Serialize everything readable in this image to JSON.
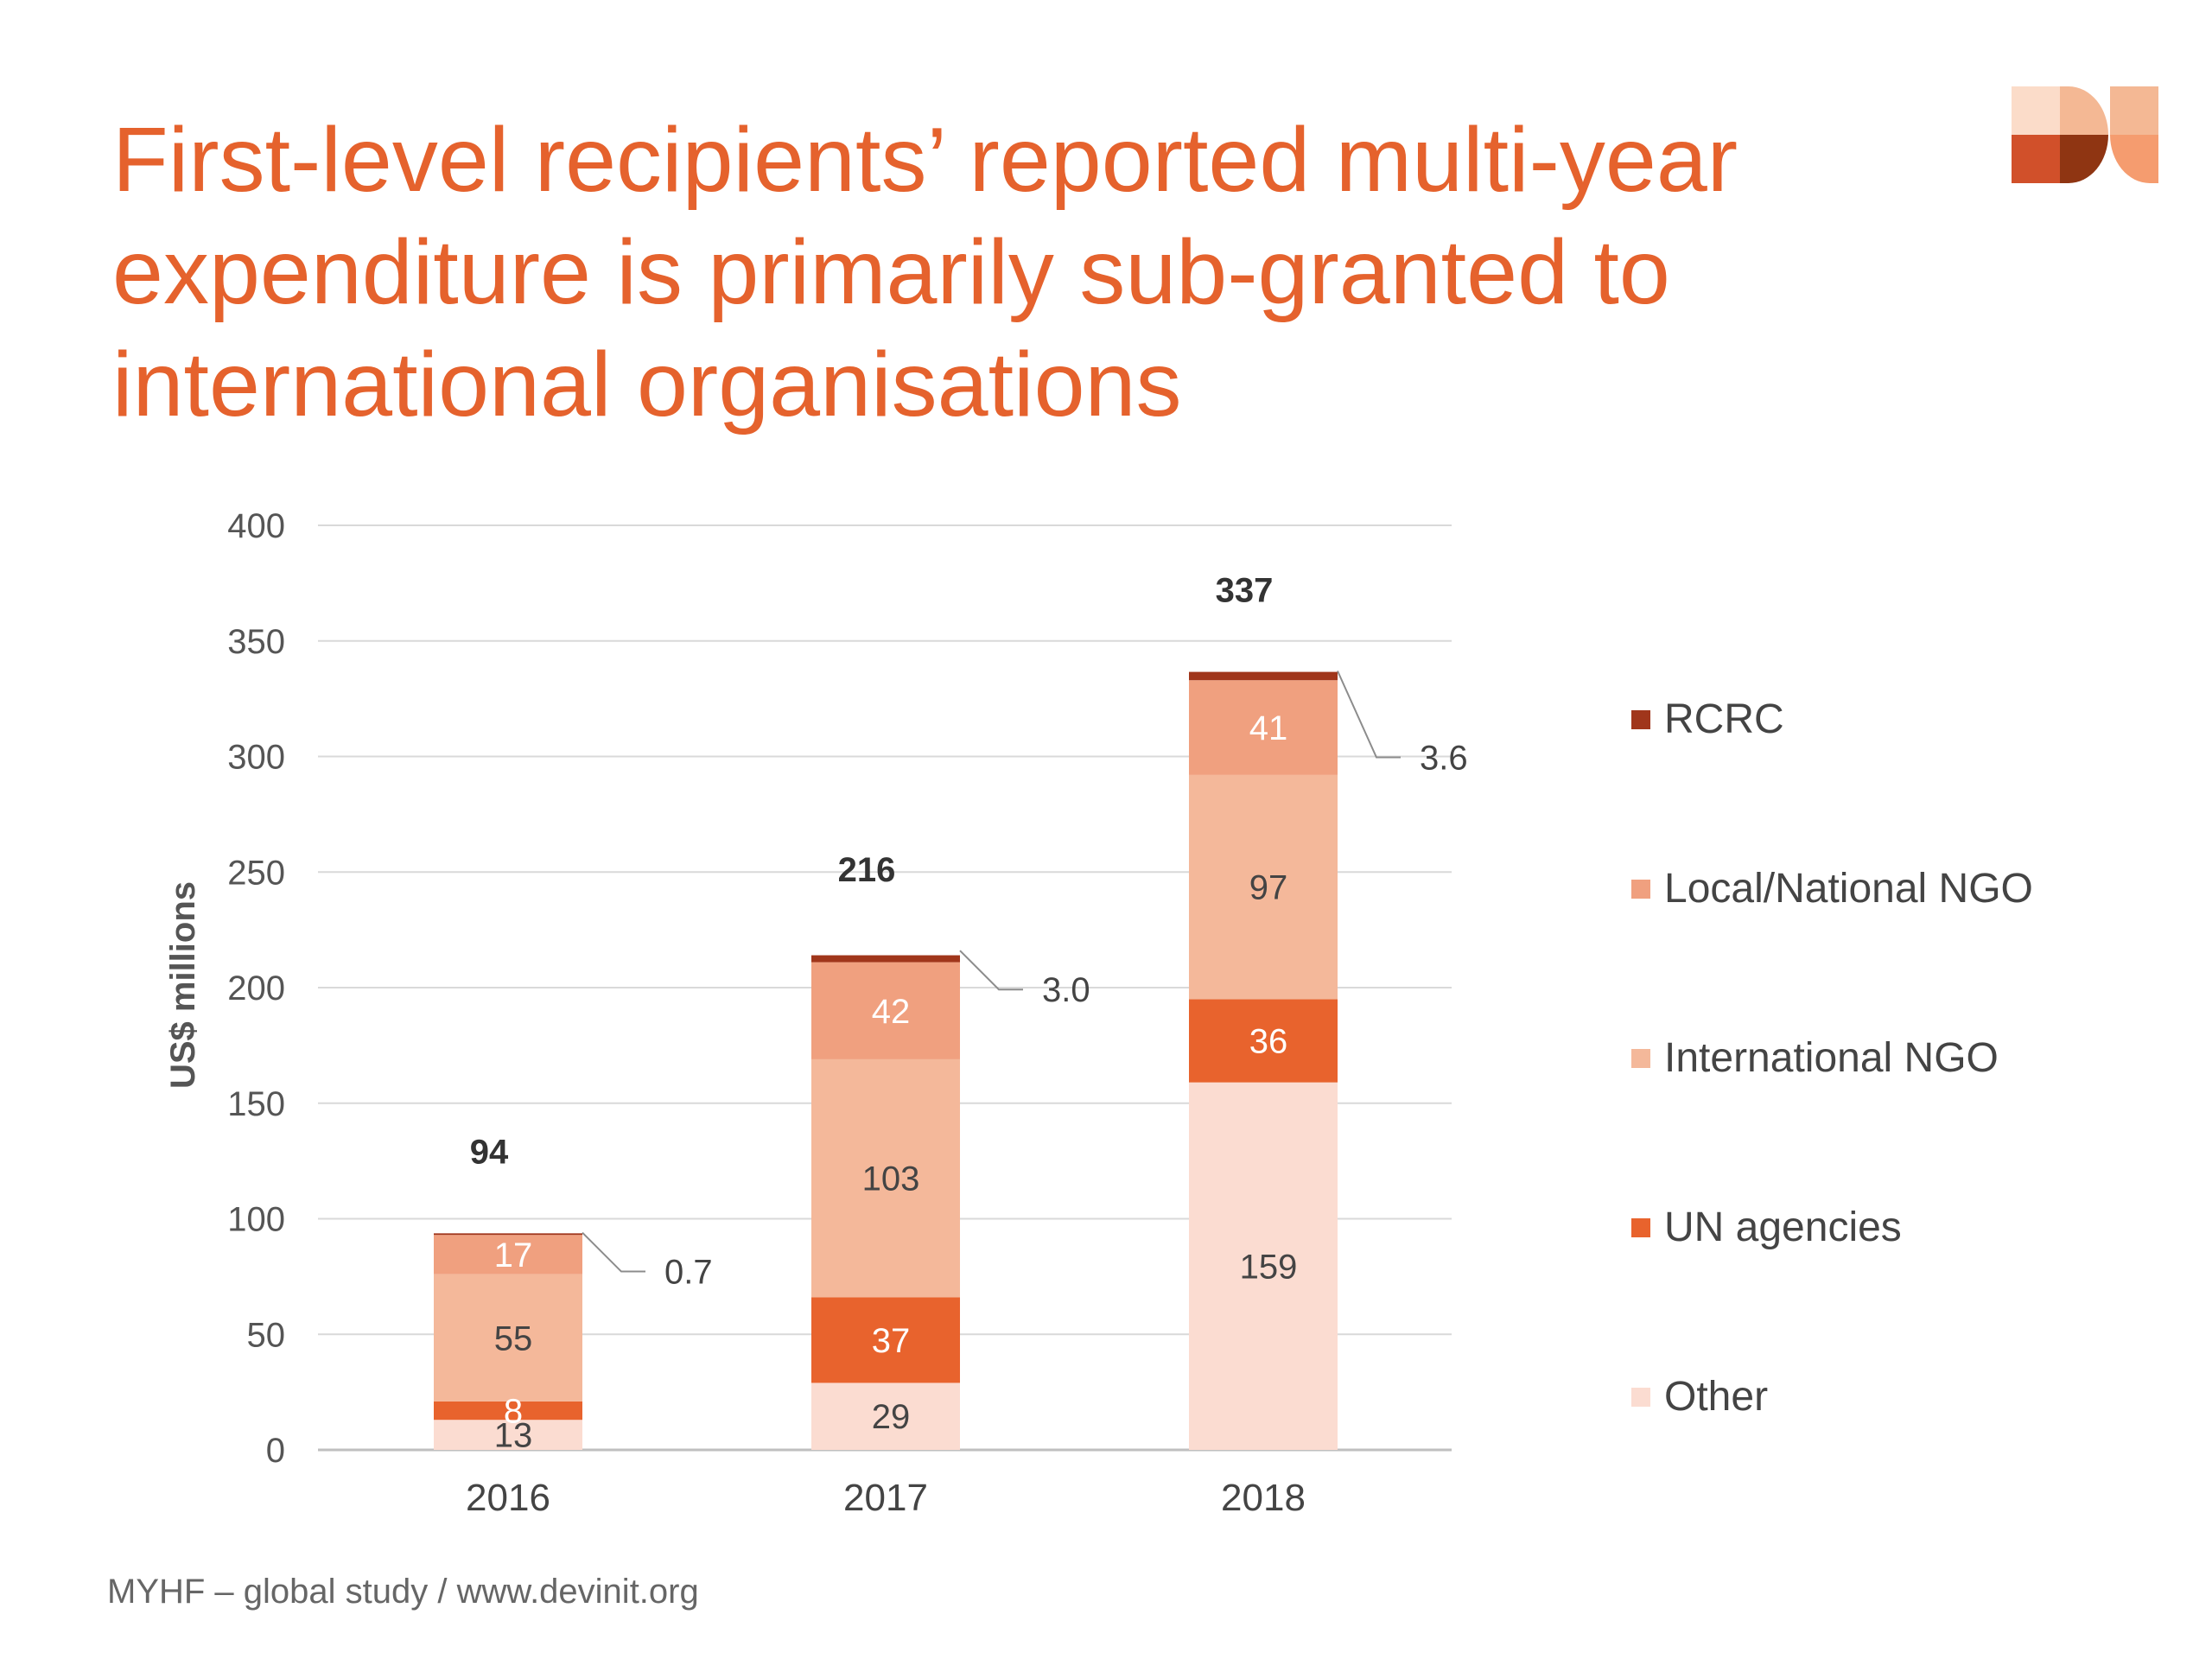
{
  "slide": {
    "title_lines": [
      "First-level recipients’ reported multi-year",
      "expenditure is primarily sub-granted to",
      "international organisations"
    ],
    "footer": "MYHF – global study / www.devinit.org"
  },
  "logo": {
    "colors": [
      "#fbdcc9",
      "#f4b894",
      "#d1502a",
      "#8f3512",
      "#f59c6f"
    ]
  },
  "chart_data": {
    "type": "bar",
    "stacked": true,
    "categories": [
      "2016",
      "2017",
      "2018"
    ],
    "ylabel": "US$ millions",
    "xlabel": "",
    "ylim": [
      0,
      400
    ],
    "yticks": [
      0,
      50,
      100,
      150,
      200,
      250,
      300,
      350,
      400
    ],
    "grid": true,
    "legend_position": "right",
    "series": [
      {
        "name": "Other",
        "color": "#fbdcd1",
        "values": [
          13,
          29,
          159
        ],
        "labels": [
          "13",
          "29",
          "159"
        ]
      },
      {
        "name": "UN agencies",
        "color": "#e8632d",
        "values": [
          8,
          37,
          36
        ],
        "labels": [
          "8",
          "37",
          "36"
        ]
      },
      {
        "name": "International NGO",
        "color": "#f4b89a",
        "values": [
          55,
          103,
          97
        ],
        "labels": [
          "55",
          "103",
          "97"
        ]
      },
      {
        "name": "Local/National NGO",
        "color": "#f0a07f",
        "values": [
          17,
          42,
          41
        ],
        "labels": [
          "17",
          "42",
          "41"
        ]
      },
      {
        "name": "RCRC",
        "color": "#a0361b",
        "values": [
          0.7,
          3.0,
          3.6
        ],
        "labels": [
          "0.7",
          "3.0",
          "3.6"
        ]
      }
    ],
    "totals": [
      94,
      216,
      337
    ],
    "total_labels": [
      "94",
      "216",
      "337"
    ],
    "legend_order": [
      "RCRC",
      "Local/National NGO",
      "International NGO",
      "UN agencies",
      "Other"
    ]
  }
}
